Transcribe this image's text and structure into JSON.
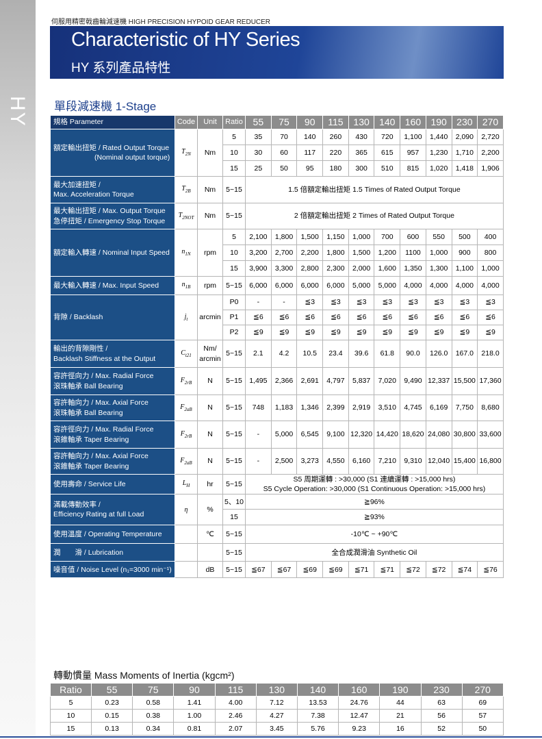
{
  "header": {
    "top_label": "伺服用精密戟齒輪減速機  HIGH PRECISION HYPOID GEAR REDUCER",
    "title": "Characteristic of HY Series",
    "subtitle": "HY 系列產品特性",
    "side_label": "HY"
  },
  "section_title": "單段減速機 1-Stage",
  "table": {
    "columns": [
      "規格 Parameter",
      "Code",
      "Unit",
      "Ratio"
    ],
    "sizes": [
      "55",
      "75",
      "90",
      "115",
      "130",
      "140",
      "160",
      "190",
      "230",
      "270"
    ],
    "rows": [
      {
        "label": [
          "額定輸出扭矩 / Rated Output Torque",
          "(Nominal output torque)"
        ],
        "code": {
          "main": "T",
          "sub": "2N"
        },
        "unit": "Nm",
        "subrows": [
          {
            "ratio": "5",
            "values": [
              "35",
              "70",
              "140",
              "260",
              "430",
              "720",
              "1,100",
              "1,440",
              "2,090",
              "2,720"
            ]
          },
          {
            "ratio": "10",
            "values": [
              "30",
              "60",
              "117",
              "220",
              "365",
              "615",
              "957",
              "1,230",
              "1,710",
              "2,200"
            ]
          },
          {
            "ratio": "15",
            "values": [
              "25",
              "50",
              "95",
              "180",
              "300",
              "510",
              "815",
              "1,020",
              "1,418",
              "1,906"
            ]
          }
        ]
      },
      {
        "label": [
          "最大加速扭矩 /",
          "Max. Acceleration Torque"
        ],
        "code": {
          "main": "T",
          "sub": "2B"
        },
        "unit": "Nm",
        "subrows": [
          {
            "ratio": "5~15",
            "text": [
              "1.5 倍額定輸出扭矩  1.5 Times of Rated Output Torque"
            ]
          }
        ]
      },
      {
        "label": [
          "最大輸出扭矩 / Max. Output Torque",
          "急停扭矩 / Emergency Stop Torque"
        ],
        "code": {
          "main": "T",
          "sub": "2NOT"
        },
        "unit": "Nm",
        "subrows": [
          {
            "ratio": "5~15",
            "text": [
              "2 倍額定輸出扭矩 2 Times of Rated Output Torque"
            ]
          }
        ]
      },
      {
        "label": [
          "額定輸入轉速 / Nominal Input Speed"
        ],
        "code": {
          "main": "n",
          "sub": "1N"
        },
        "unit": "rpm",
        "subrows": [
          {
            "ratio": "5",
            "values": [
              "2,100",
              "1,800",
              "1,500",
              "1,150",
              "1,000",
              "700",
              "600",
              "550",
              "500",
              "400"
            ]
          },
          {
            "ratio": "10",
            "values": [
              "3,200",
              "2,700",
              "2,200",
              "1,800",
              "1,500",
              "1,200",
              "1100",
              "1,000",
              "900",
              "800"
            ]
          },
          {
            "ratio": "15",
            "values": [
              "3,900",
              "3,300",
              "2,800",
              "2,300",
              "2,000",
              "1,600",
              "1,350",
              "1,300",
              "1,100",
              "1,000"
            ]
          }
        ]
      },
      {
        "label": [
          "最大輸入轉速 / Max. Input Speed"
        ],
        "code": {
          "main": "n",
          "sub": "1B"
        },
        "unit": "rpm",
        "subrows": [
          {
            "ratio": "5~15",
            "values": [
              "6,000",
              "6,000",
              "6,000",
              "6,000",
              "5,000",
              "5,000",
              "4,000",
              "4,000",
              "4,000",
              "4,000"
            ]
          }
        ]
      },
      {
        "label": [
          "背隙 / Backlash"
        ],
        "code": {
          "main": "j",
          "sub": "t"
        },
        "unit": "arcmin",
        "subrows": [
          {
            "ratio": "P0",
            "values": [
              "-",
              "-",
              "≦3",
              "≦3",
              "≦3",
              "≦3",
              "≦3",
              "≦3",
              "≦3",
              "≦3"
            ]
          },
          {
            "ratio": "P1",
            "values": [
              "≦6",
              "≦6",
              "≦6",
              "≦6",
              "≦6",
              "≦6",
              "≦6",
              "≦6",
              "≦6",
              "≦6"
            ]
          },
          {
            "ratio": "P2",
            "values": [
              "≦9",
              "≦9",
              "≦9",
              "≦9",
              "≦9",
              "≦9",
              "≦9",
              "≦9",
              "≦9",
              "≦9"
            ]
          }
        ]
      },
      {
        "label": [
          "輸出的背隙剛性 /",
          "Backlash Stiffness at the Output"
        ],
        "code": {
          "main": "C",
          "sub": "t21"
        },
        "unit": "Nm/ arcmin",
        "subrows": [
          {
            "ratio": "5~15",
            "values": [
              "2.1",
              "4.2",
              "10.5",
              "23.4",
              "39.6",
              "61.8",
              "90.0",
              "126.0",
              "167.0",
              "218.0"
            ]
          }
        ]
      },
      {
        "label": [
          "容許徑向力 / Max. Radial Force",
          "滾珠軸承 Ball Bearing"
        ],
        "code": {
          "main": "F",
          "sub": "2rB"
        },
        "unit": "N",
        "subrows": [
          {
            "ratio": "5~15",
            "values": [
              "1,495",
              "2,366",
              "2,691",
              "4,797",
              "5,837",
              "7,020",
              "9,490",
              "12,337",
              "15,500",
              "17,360"
            ]
          }
        ]
      },
      {
        "label": [
          "容許軸向力 / Max. Axial Force",
          "滾珠軸承 Ball Bearing"
        ],
        "code": {
          "main": "F",
          "sub": "2aB"
        },
        "unit": "N",
        "subrows": [
          {
            "ratio": "5~15",
            "values": [
              "748",
              "1,183",
              "1,346",
              "2,399",
              "2,919",
              "3,510",
              "4,745",
              "6,169",
              "7,750",
              "8,680"
            ]
          }
        ]
      },
      {
        "label": [
          "容許徑向力 / Max. Radial Force",
          "滾錐軸承 Taper Bearing"
        ],
        "code": {
          "main": "F",
          "sub": "2rB"
        },
        "unit": "N",
        "subrows": [
          {
            "ratio": "5~15",
            "values": [
              "-",
              "5,000",
              "6,545",
              "9,100",
              "12,320",
              "14,420",
              "18,620",
              "24,080",
              "30,800",
              "33,600"
            ]
          }
        ]
      },
      {
        "label": [
          "容許軸向力 / Max. Axial Force",
          "滾錐軸承 Taper Bearing"
        ],
        "code": {
          "main": "F",
          "sub": "2aB"
        },
        "unit": "N",
        "subrows": [
          {
            "ratio": "5~15",
            "values": [
              "-",
              "2,500",
              "3,273",
              "4,550",
              "6,160",
              "7,210",
              "9,310",
              "12,040",
              "15,400",
              "16,800"
            ]
          }
        ]
      },
      {
        "label": [
          "使用壽命 / Service Life"
        ],
        "code": {
          "main": "L",
          "sub": "H"
        },
        "unit": "hr",
        "subrows": [
          {
            "ratio": "5~15",
            "text": [
              "S5 周期運轉 : >30,000 (S1 連續運轉 : >15,000 hrs)",
              "S5 Cycle Operation: >30,000 (S1 Continuous Operation: >15,000 hrs)"
            ]
          }
        ]
      },
      {
        "label": [
          "滿載傳動效率 /",
          "Efficiency Rating at full Load"
        ],
        "code": {
          "main": "η"
        },
        "unit": "%",
        "subrows": [
          {
            "ratio": "5、10",
            "text": [
              "≧96%"
            ]
          },
          {
            "ratio": "15",
            "text": [
              "≧93%"
            ]
          }
        ]
      },
      {
        "label": [
          "使用溫度 / Operating Temperature"
        ],
        "unit": "℃",
        "subrows": [
          {
            "ratio": "5~15",
            "text": [
              "-10℃ ~ +90℃"
            ]
          }
        ]
      },
      {
        "label": [
          "潤　　滑 / Lubrication"
        ],
        "subrows": [
          {
            "ratio": "5~15",
            "text": [
              "全合成潤滑油 Synthetic Oil"
            ]
          }
        ]
      },
      {
        "label": [
          "噪音值 / Noise Level (n₁=3000 min⁻¹)"
        ],
        "unit": "dB",
        "subrows": [
          {
            "ratio": "5~15",
            "values": [
              "≦67",
              "≦67",
              "≦69",
              "≦69",
              "≦71",
              "≦71",
              "≦72",
              "≦72",
              "≦74",
              "≦76"
            ]
          }
        ]
      }
    ]
  },
  "inertia": {
    "title": "轉動慣量 Mass Moments of Inertia (kgcm²)",
    "header": [
      "Ratio",
      "55",
      "75",
      "90",
      "115",
      "130",
      "140",
      "160",
      "190",
      "230",
      "270"
    ],
    "rows": [
      [
        "5",
        "0.23",
        "0.58",
        "1.41",
        "4.00",
        "7.12",
        "13.53",
        "24.76",
        "44",
        "63",
        "69"
      ],
      [
        "10",
        "0.15",
        "0.38",
        "1.00",
        "2.46",
        "4.27",
        "7.38",
        "12.47",
        "21",
        "56",
        "57"
      ],
      [
        "15",
        "0.13",
        "0.34",
        "0.81",
        "2.07",
        "3.45",
        "5.76",
        "9.23",
        "16",
        "52",
        "50"
      ]
    ]
  }
}
